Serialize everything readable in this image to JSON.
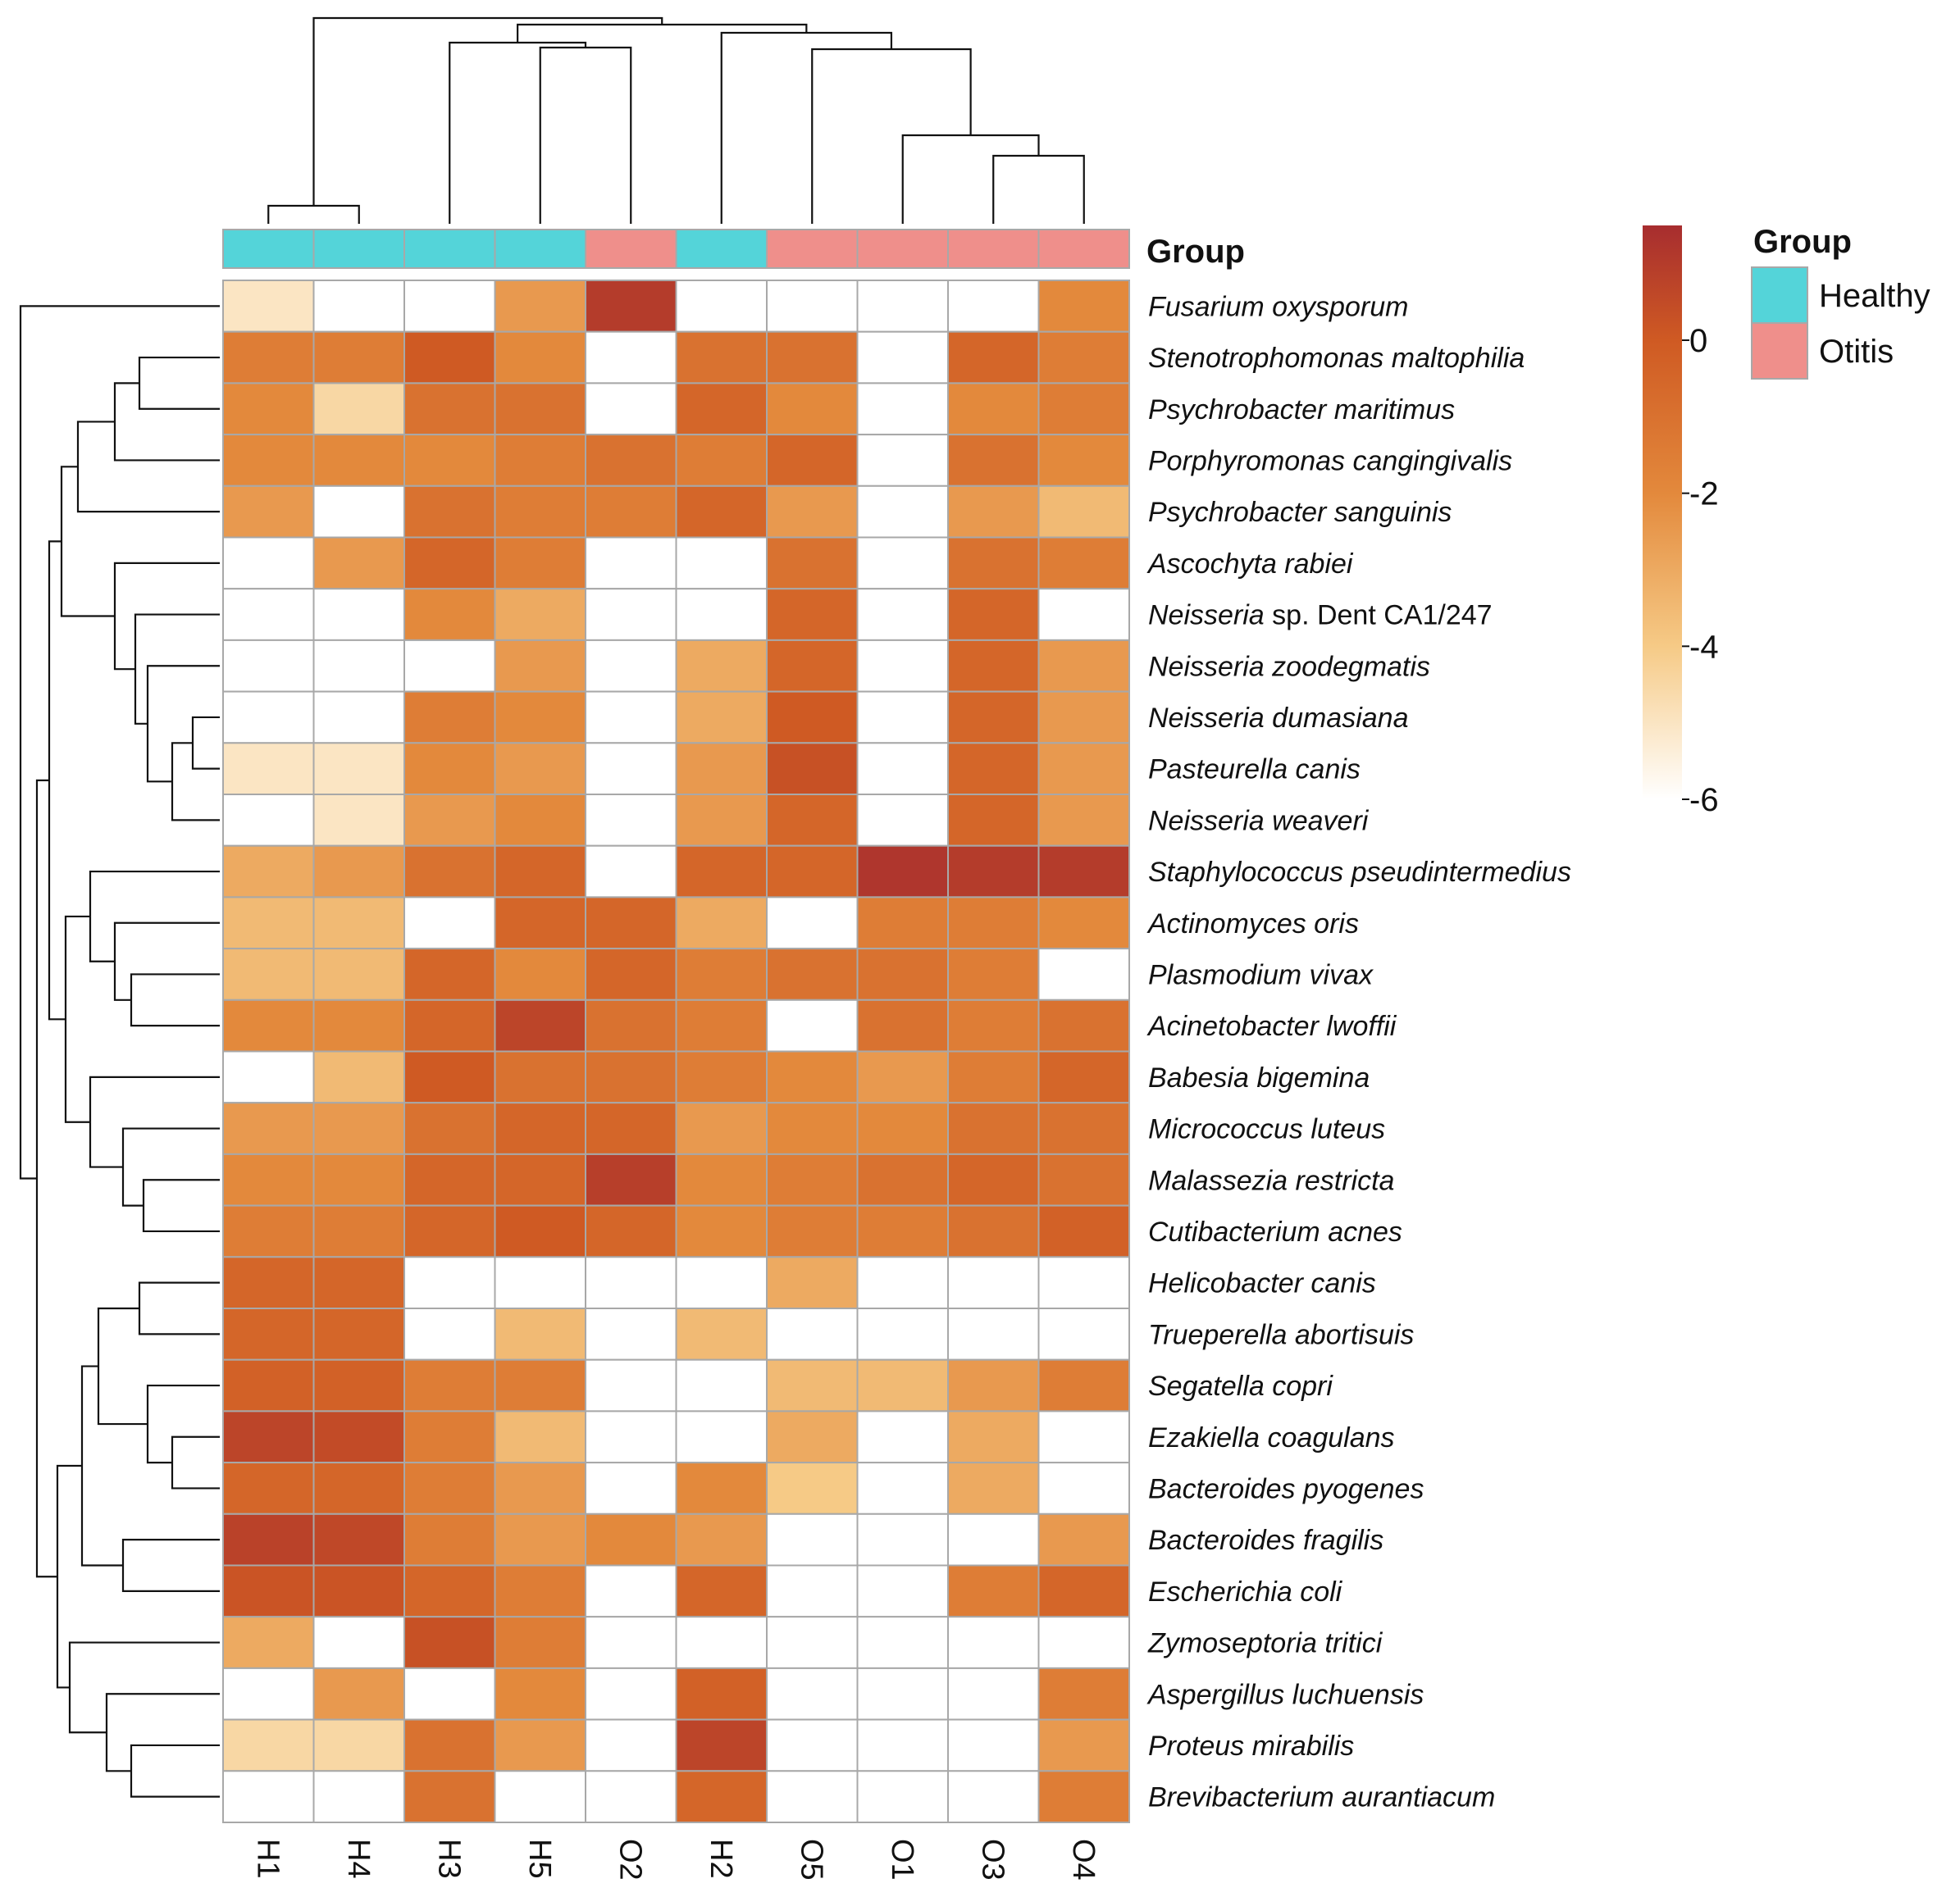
{
  "chart_data": {
    "type": "heatmap",
    "columns": [
      "H1",
      "H4",
      "H3",
      "H5",
      "O2",
      "H2",
      "O5",
      "O1",
      "O3",
      "O4"
    ],
    "column_groups": [
      "Healthy",
      "Healthy",
      "Healthy",
      "Healthy",
      "Otitis",
      "Healthy",
      "Otitis",
      "Otitis",
      "Otitis",
      "Otitis"
    ],
    "rows": [
      {
        "genus": "Fusarium oxysporum",
        "rest": ""
      },
      {
        "genus": "Stenotrophomonas maltophilia",
        "rest": ""
      },
      {
        "genus": "Psychrobacter maritimus",
        "rest": ""
      },
      {
        "genus": "Porphyromonas cangingivalis",
        "rest": ""
      },
      {
        "genus": "Psychrobacter sanguinis",
        "rest": ""
      },
      {
        "genus": "Ascochyta rabiei",
        "rest": ""
      },
      {
        "genus": "Neisseria",
        "rest": " sp. Dent CA1/247"
      },
      {
        "genus": "Neisseria zoodegmatis",
        "rest": ""
      },
      {
        "genus": "Neisseria dumasiana",
        "rest": ""
      },
      {
        "genus": "Pasteurella canis",
        "rest": ""
      },
      {
        "genus": "Neisseria weaveri",
        "rest": ""
      },
      {
        "genus": "Staphylococcus pseudintermedius",
        "rest": ""
      },
      {
        "genus": "Actinomyces oris",
        "rest": ""
      },
      {
        "genus": "Plasmodium vivax",
        "rest": ""
      },
      {
        "genus": "Acinetobacter lwoffii",
        "rest": ""
      },
      {
        "genus": "Babesia bigemina",
        "rest": ""
      },
      {
        "genus": "Micrococcus luteus",
        "rest": ""
      },
      {
        "genus": "Malassezia restricta",
        "rest": ""
      },
      {
        "genus": "Cutibacterium acnes",
        "rest": ""
      },
      {
        "genus": "Helicobacter canis",
        "rest": ""
      },
      {
        "genus": "Trueperella abortisuis",
        "rest": ""
      },
      {
        "genus": "Segatella copri",
        "rest": ""
      },
      {
        "genus": "Ezakiella coagulans",
        "rest": ""
      },
      {
        "genus": "Bacteroides pyogenes",
        "rest": ""
      },
      {
        "genus": "Bacteroides fragilis",
        "rest": ""
      },
      {
        "genus": "Escherichia coli",
        "rest": ""
      },
      {
        "genus": "Zymoseptoria tritici",
        "rest": ""
      },
      {
        "genus": "Aspergillus luchuensis",
        "rest": ""
      },
      {
        "genus": "Proteus mirabilis",
        "rest": ""
      },
      {
        "genus": "Brevibacterium aurantiacum",
        "rest": ""
      }
    ],
    "values": [
      [
        -5,
        null,
        null,
        -2.5,
        1,
        null,
        null,
        null,
        null,
        -2
      ],
      [
        -1.5,
        -1.5,
        0,
        -2,
        null,
        -1,
        -1,
        null,
        -0.5,
        -1.5
      ],
      [
        -2,
        -4.5,
        -1,
        -1,
        null,
        -0.5,
        -2,
        null,
        -2,
        -1.5
      ],
      [
        -2,
        -2,
        -2,
        -1.5,
        -1,
        -1.5,
        -0.5,
        null,
        -1,
        -2
      ],
      [
        -2.5,
        null,
        -1,
        -1.5,
        -1.5,
        -0.5,
        -2.5,
        null,
        -2.5,
        -3.5
      ],
      [
        null,
        -2.5,
        -0.5,
        -1.5,
        null,
        null,
        -1,
        null,
        -1,
        -1.5
      ],
      [
        null,
        null,
        -2,
        -3,
        null,
        null,
        -0.5,
        null,
        -0.5,
        null
      ],
      [
        null,
        null,
        null,
        -2.5,
        null,
        -3,
        -0.5,
        null,
        -0.5,
        -2.5
      ],
      [
        null,
        null,
        -1.5,
        -2,
        null,
        -3,
        0,
        null,
        -0.5,
        -2.5
      ],
      [
        -5,
        -5,
        -2,
        -2.5,
        null,
        -2.5,
        0.3,
        null,
        -0.5,
        -2.5
      ],
      [
        null,
        -5,
        -2.5,
        -2,
        null,
        -2.5,
        -0.5,
        null,
        -0.5,
        -2.5
      ],
      [
        -3,
        -2.5,
        -1,
        -0.5,
        null,
        -0.5,
        -0.5,
        1.2,
        1,
        1
      ],
      [
        -3.5,
        -3.5,
        null,
        -0.5,
        -0.5,
        -3,
        null,
        -1.5,
        -1.5,
        -2
      ],
      [
        -3.5,
        -3.5,
        -0.5,
        -2,
        -0.5,
        -1.5,
        -1,
        -1,
        -1.5,
        null
      ],
      [
        -2,
        -2,
        -0.5,
        0.7,
        -1,
        -1.5,
        null,
        -1,
        -1.5,
        -1
      ],
      [
        null,
        -3.5,
        0,
        -1,
        -1,
        -1.5,
        -2,
        -2.5,
        -1.5,
        -0.5
      ],
      [
        -2.5,
        -2.5,
        -1,
        -0.5,
        -0.5,
        -2.5,
        -2,
        -2,
        -1,
        -1
      ],
      [
        -2,
        -2,
        -0.5,
        -0.5,
        0.9,
        -2,
        -1.5,
        -1,
        -0.5,
        -1
      ],
      [
        -1.5,
        -1.5,
        -0.5,
        0,
        -0.5,
        -2,
        -1.5,
        -1.5,
        -1,
        -0.3
      ],
      [
        -0.5,
        -0.5,
        null,
        null,
        null,
        null,
        -3,
        null,
        null,
        null
      ],
      [
        -0.5,
        -0.5,
        null,
        -3.5,
        null,
        -3.5,
        null,
        null,
        null,
        null
      ],
      [
        -0.3,
        -0.3,
        -1.5,
        -1.5,
        null,
        null,
        -3.5,
        -3.5,
        -2.5,
        -1.5
      ],
      [
        0.7,
        0.5,
        -1.5,
        -3.5,
        null,
        null,
        -3,
        null,
        -3,
        null
      ],
      [
        -0.5,
        -0.5,
        -1.5,
        -2.5,
        null,
        -2,
        -4,
        null,
        -3,
        null
      ],
      [
        0.8,
        0.6,
        -1.5,
        -2.5,
        -2,
        -2.5,
        null,
        null,
        null,
        -2.5
      ],
      [
        0.2,
        0.2,
        -0.5,
        -1.5,
        null,
        -0.5,
        null,
        null,
        -1.5,
        -0.5
      ],
      [
        -3,
        null,
        0.3,
        -1.5,
        null,
        null,
        null,
        null,
        null,
        null
      ],
      [
        null,
        -2.5,
        null,
        -2,
        null,
        -0.3,
        null,
        null,
        null,
        -1.5
      ],
      [
        -4.5,
        -4.5,
        -1,
        -2.5,
        null,
        0.7,
        null,
        null,
        null,
        -2.5
      ],
      [
        null,
        null,
        -1,
        null,
        null,
        -0.5,
        null,
        null,
        null,
        -1.5
      ]
    ],
    "colorbar": {
      "min": -6,
      "max": 1.5,
      "ticks": [
        "0",
        "-2",
        "-4",
        "-6"
      ],
      "stops": [
        {
          "v": -6,
          "c": "#ffffff"
        },
        {
          "v": -4,
          "c": "#f6ca86"
        },
        {
          "v": -2,
          "c": "#e3893c"
        },
        {
          "v": 0,
          "c": "#cf5a23"
        },
        {
          "v": 1.5,
          "c": "#a72d2f"
        }
      ]
    },
    "na_color": "#ffffff",
    "annotation_title": "Group",
    "legend": {
      "title": "Group",
      "items": [
        {
          "label": "Healthy",
          "color": "#54d4d9"
        },
        {
          "label": "Otitis",
          "color": "#ef8f8b"
        }
      ]
    },
    "dendrogram_color": "#111111"
  }
}
